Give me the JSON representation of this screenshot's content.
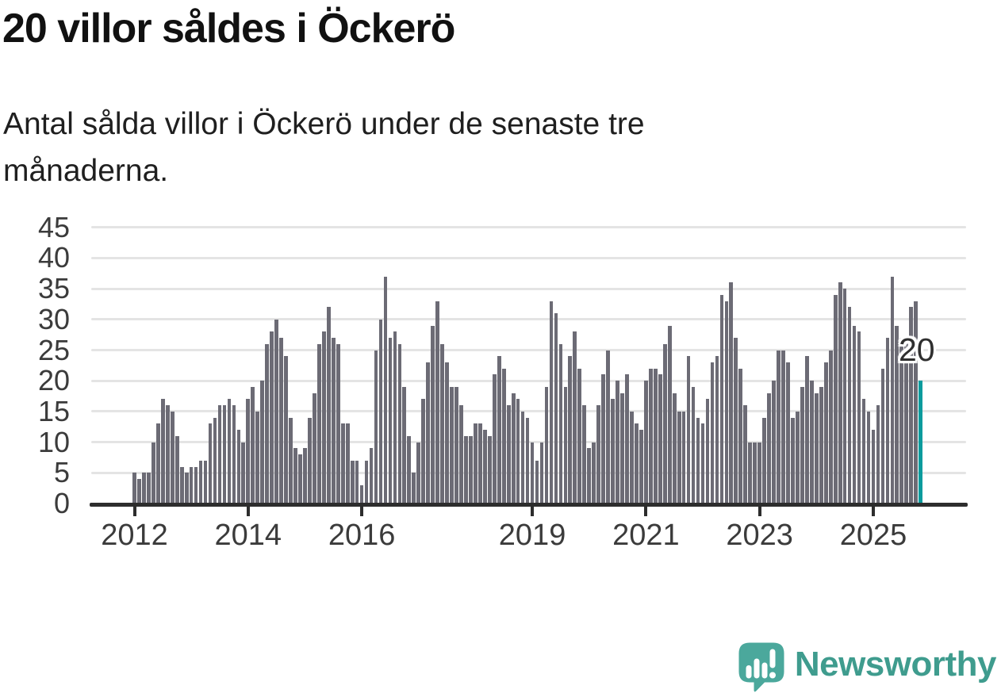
{
  "header": {
    "title": "20 villor såldes i Öckerö",
    "subtitle": "Antal sålda villor i Öckerö under de senaste tre månaderna."
  },
  "chart_data": {
    "type": "bar",
    "title": "20 villor såldes i Öckerö",
    "xlabel": "",
    "ylabel": "",
    "ylim": [
      0,
      45
    ],
    "grid": true,
    "legend": false,
    "yticks": [
      0,
      5,
      10,
      15,
      20,
      25,
      30,
      35,
      40,
      45
    ],
    "xtick_years": [
      2012,
      2014,
      2016,
      2019,
      2021,
      2023,
      2025
    ],
    "start_year": 2012,
    "period": "monthly_rolling_3_months",
    "values": [
      5,
      4,
      5,
      5,
      10,
      13,
      17,
      16,
      15,
      11,
      6,
      5,
      6,
      6,
      7,
      7,
      13,
      14,
      16,
      16,
      17,
      16,
      12,
      10,
      17,
      19,
      15,
      20,
      26,
      28,
      30,
      27,
      24,
      14,
      9,
      8,
      9,
      14,
      18,
      26,
      28,
      32,
      27,
      26,
      13,
      13,
      7,
      7,
      3,
      7,
      9,
      25,
      30,
      37,
      27,
      28,
      26,
      19,
      11,
      5,
      10,
      17,
      23,
      29,
      33,
      26,
      23,
      19,
      19,
      16,
      11,
      11,
      13,
      13,
      12,
      11,
      21,
      24,
      22,
      16,
      18,
      17,
      15,
      14,
      10,
      7,
      10,
      19,
      33,
      31,
      26,
      19,
      24,
      28,
      22,
      16,
      9,
      10,
      16,
      21,
      25,
      17,
      20,
      18,
      21,
      15,
      13,
      12,
      20,
      22,
      22,
      21,
      26,
      29,
      18,
      15,
      15,
      24,
      19,
      14,
      13,
      17,
      23,
      24,
      34,
      33,
      36,
      27,
      22,
      16,
      10,
      10,
      10,
      14,
      18,
      20,
      25,
      25,
      23,
      14,
      15,
      19,
      24,
      20,
      18,
      19,
      23,
      25,
      34,
      36,
      35,
      32,
      29,
      28,
      17,
      15,
      12,
      16,
      22,
      27,
      37,
      29,
      27,
      27,
      32,
      33,
      20
    ],
    "highlight_last": true,
    "latest_value": 20,
    "annotation": {
      "text": "20"
    },
    "colors": {
      "bar": "#6c6b75",
      "highlight": "#0a9b9d",
      "grid": "#e4e4e4",
      "axis": "#2d2d2d",
      "labels": "#3b3b3b"
    }
  },
  "footer": {
    "brand": "Newsworthy",
    "logo_icon": "newsworthy-speech-bubble-chart-icon",
    "brand_color": "#3f9c8e",
    "icon_color": "#4ba89c"
  }
}
